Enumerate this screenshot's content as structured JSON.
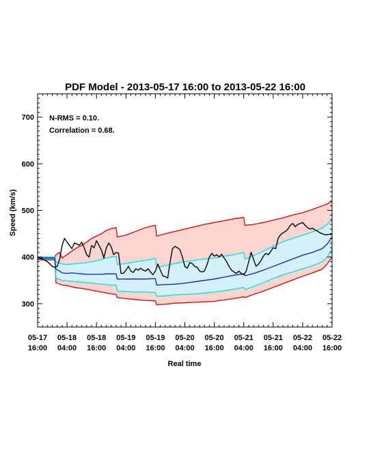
{
  "chart_data": {
    "type": "line",
    "title": "PDF Model - 2013-05-17 16:00 to 2013-05-22 16:00",
    "annotations": [
      "N-RMS = 0.10.",
      "Correlation = 0.68."
    ],
    "xlabel": "Real time",
    "ylabel": "Speed (km/s)",
    "ylim": [
      250,
      750
    ],
    "yticks": [
      300,
      400,
      500,
      600,
      700
    ],
    "xlim_hours": [
      0,
      120
    ],
    "xticks": [
      {
        "hour": 0,
        "date": "05-17",
        "time": "16:00"
      },
      {
        "hour": 12,
        "date": "05-18",
        "time": "04:00"
      },
      {
        "hour": 24,
        "date": "05-18",
        "time": "16:00"
      },
      {
        "hour": 36,
        "date": "05-19",
        "time": "04:00"
      },
      {
        "hour": 48,
        "date": "05-19",
        "time": "16:00"
      },
      {
        "hour": 60,
        "date": "05-20",
        "time": "04:00"
      },
      {
        "hour": 72,
        "date": "05-20",
        "time": "16:00"
      },
      {
        "hour": 84,
        "date": "05-21",
        "time": "04:00"
      },
      {
        "hour": 96,
        "date": "05-21",
        "time": "16:00"
      },
      {
        "hour": 108,
        "date": "05-22",
        "time": "04:00"
      },
      {
        "hour": 120,
        "date": "05-22",
        "time": "16:00"
      }
    ],
    "grid": false,
    "colors": {
      "outer_band": "#e00000",
      "outer_fill": "#fbd5d0",
      "inner_band": "#00e0e0",
      "inner_fill": "#d5f0fa",
      "median": "#0020d0",
      "observed": "#000000"
    },
    "series": [
      {
        "key": "outer_upper",
        "x": [
          0,
          7,
          7.5,
          9,
          10,
          12,
          14,
          16,
          18,
          20,
          22,
          24,
          26,
          28,
          30,
          32,
          32.5,
          36,
          40,
          44,
          48,
          48.5,
          52,
          56,
          60,
          64,
          68,
          72,
          76,
          80,
          84,
          84.5,
          88,
          92,
          96,
          100,
          104,
          108,
          112,
          116,
          118,
          120
        ],
        "values": [
          400,
          400,
          405,
          410,
          398,
          405,
          413,
          420,
          425,
          432,
          440,
          445,
          450,
          457,
          461,
          463,
          443,
          447,
          455,
          463,
          468,
          445,
          450,
          455,
          460,
          465,
          470,
          474,
          478,
          482,
          485,
          468,
          470,
          474,
          479,
          484,
          490,
          495,
          502,
          510,
          514,
          520
        ]
      },
      {
        "key": "inner_upper",
        "x": [
          0,
          7,
          7.5,
          9,
          10,
          12,
          14,
          16,
          18,
          20,
          22,
          24,
          26,
          28,
          30,
          32,
          32.5,
          36,
          40,
          44,
          48,
          48.5,
          52,
          56,
          60,
          64,
          68,
          72,
          76,
          80,
          84,
          84.5,
          88,
          92,
          96,
          100,
          104,
          108,
          112,
          116,
          118,
          120
        ],
        "values": [
          400,
          400,
          390,
          387,
          385,
          384,
          385,
          386,
          387,
          388,
          390,
          392,
          395,
          398,
          400,
          401,
          384,
          386,
          390,
          393,
          397,
          378,
          382,
          386,
          390,
          393,
          396,
          398,
          402,
          405,
          410,
          396,
          403,
          413,
          423,
          433,
          440,
          447,
          454,
          462,
          470,
          480
        ]
      },
      {
        "key": "median",
        "x": [
          0,
          7,
          7.5,
          9,
          10,
          12,
          14,
          16,
          18,
          20,
          22,
          24,
          26,
          28,
          30,
          32,
          32.5,
          36,
          40,
          44,
          48,
          48.5,
          52,
          56,
          60,
          64,
          68,
          72,
          76,
          80,
          84,
          84.5,
          88,
          92,
          96,
          100,
          104,
          108,
          112,
          116,
          118,
          120
        ],
        "values": [
          398,
          398,
          374,
          370,
          366,
          365,
          366,
          365,
          364,
          363,
          363,
          363,
          363,
          364,
          364,
          364,
          353,
          353,
          353,
          353,
          354,
          340,
          341,
          342,
          344,
          347,
          350,
          353,
          357,
          361,
          364,
          360,
          365,
          372,
          380,
          388,
          396,
          404,
          410,
          418,
          428,
          443
        ]
      },
      {
        "key": "inner_lower",
        "x": [
          0,
          7,
          7.5,
          9,
          10,
          12,
          14,
          16,
          18,
          20,
          22,
          24,
          26,
          28,
          30,
          32,
          32.5,
          36,
          40,
          44,
          48,
          48.5,
          52,
          56,
          60,
          64,
          68,
          72,
          76,
          80,
          84,
          84.5,
          88,
          92,
          96,
          100,
          104,
          108,
          112,
          116,
          118,
          120
        ],
        "values": [
          396,
          396,
          355,
          352,
          350,
          349,
          348,
          347,
          346,
          345,
          344,
          343,
          342,
          341,
          340,
          340,
          327,
          326,
          325,
          325,
          324,
          316,
          317,
          319,
          320,
          321,
          323,
          325,
          328,
          331,
          335,
          330,
          337,
          345,
          354,
          362,
          368,
          375,
          381,
          390,
          400,
          418
        ]
      },
      {
        "key": "outer_lower",
        "x": [
          0,
          7,
          7.5,
          9,
          10,
          12,
          14,
          16,
          18,
          20,
          22,
          24,
          26,
          28,
          30,
          32,
          32.5,
          36,
          40,
          44,
          48,
          48.5,
          52,
          56,
          60,
          64,
          68,
          72,
          76,
          80,
          84,
          84.5,
          88,
          92,
          96,
          100,
          104,
          108,
          112,
          116,
          118,
          120
        ],
        "values": [
          394,
          394,
          345,
          342,
          340,
          339,
          336,
          334,
          333,
          331,
          329,
          327,
          325,
          323,
          321,
          320,
          313,
          311,
          309,
          307,
          306,
          298,
          299,
          301,
          302,
          303,
          304,
          305,
          308,
          311,
          315,
          313,
          320,
          327,
          335,
          343,
          351,
          359,
          366,
          374,
          385,
          400
        ]
      },
      {
        "key": "observed",
        "x": [
          0,
          2,
          4,
          5,
          6,
          7,
          8,
          9,
          10,
          11,
          12,
          13,
          14,
          15,
          16,
          17,
          18,
          19,
          20,
          21,
          22,
          23,
          24,
          25,
          26,
          27,
          28,
          29,
          30,
          31,
          32,
          33,
          34,
          35,
          36,
          37,
          38,
          39,
          40,
          41,
          42,
          43,
          44,
          45,
          46,
          47,
          48,
          49,
          50,
          51,
          52,
          53,
          54,
          55,
          56,
          57,
          58,
          59,
          60,
          61,
          62,
          63,
          64,
          65,
          66,
          67,
          68,
          69,
          70,
          71,
          72,
          73,
          74,
          75,
          76,
          77,
          78,
          79,
          80,
          81,
          82,
          83,
          84,
          85,
          86,
          87,
          88,
          89,
          90,
          91,
          92,
          93,
          94,
          95,
          96,
          97,
          98,
          99,
          100,
          101,
          102,
          103,
          104,
          105,
          106,
          107,
          108,
          109,
          110,
          111,
          112,
          113,
          114,
          115,
          116,
          117,
          118,
          119,
          120
        ],
        "values": [
          398,
          396,
          390,
          385,
          380,
          378,
          380,
          395,
          425,
          440,
          432,
          425,
          418,
          430,
          428,
          425,
          432,
          420,
          405,
          400,
          425,
          420,
          435,
          425,
          415,
          398,
          420,
          430,
          422,
          405,
          410,
          408,
          365,
          365,
          372,
          380,
          370,
          367,
          375,
          372,
          376,
          372,
          370,
          375,
          368,
          362,
          370,
          385,
          372,
          360,
          358,
          355,
          390,
          418,
          423,
          420,
          416,
          400,
          380,
          376,
          388,
          386,
          380,
          378,
          370,
          368,
          370,
          383,
          400,
          408,
          402,
          405,
          400,
          406,
          398,
          390,
          380,
          372,
          368,
          365,
          370,
          365,
          362,
          370,
          390,
          410,
          395,
          380,
          385,
          392,
          402,
          408,
          405,
          412,
          420,
          418,
          440,
          448,
          452,
          455,
          460,
          468,
          472,
          465,
          470,
          472,
          474,
          468,
          463,
          460,
          462,
          458,
          456,
          452,
          450,
          448,
          448,
          449,
          448
        ]
      }
    ]
  }
}
